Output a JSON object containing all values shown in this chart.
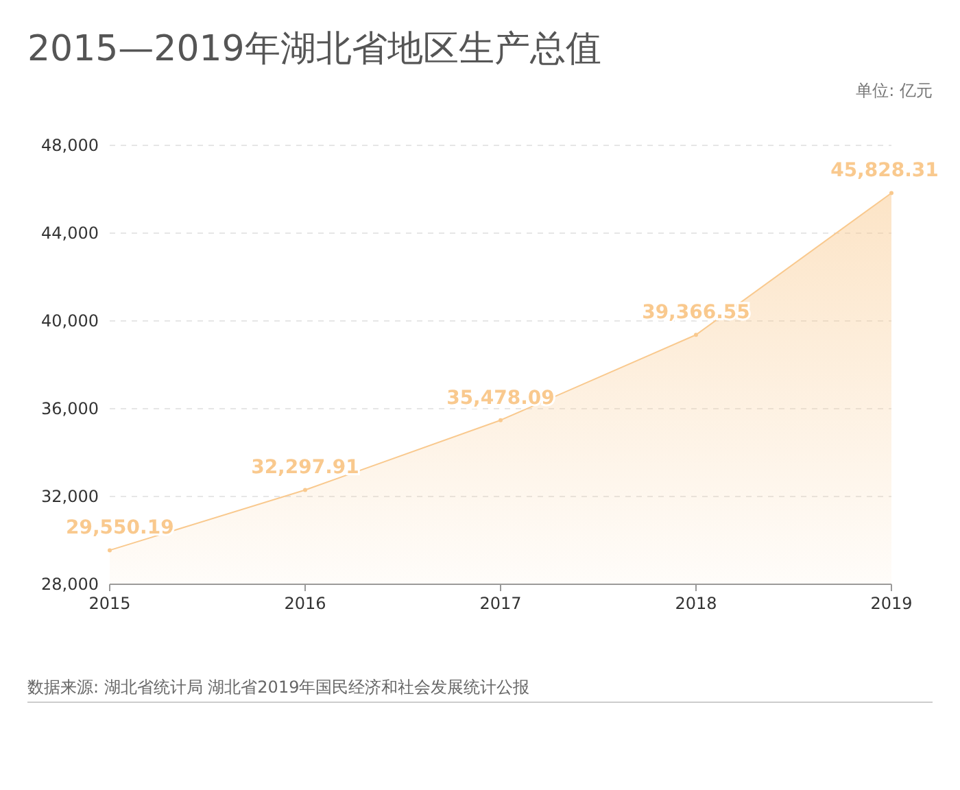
{
  "chart_data": {
    "type": "area",
    "title": "2015—2019年湖北省地区生产总值",
    "categories": [
      "2015",
      "2016",
      "2017",
      "2018",
      "2019"
    ],
    "values": [
      29550.19,
      32297.91,
      35478.09,
      39366.55,
      45828.31
    ],
    "color": "#f9c98e",
    "data_labels": true,
    "value_labels": [
      "29,550.19",
      "32,297.91",
      "35,478.09",
      "39,366.55",
      "45,828.31"
    ],
    "ylim": [
      28000,
      48000
    ],
    "yticks": [
      {
        "value": 28000,
        "label": "28,000"
      },
      {
        "value": 32000,
        "label": "32,000"
      },
      {
        "value": 36000,
        "label": "36,000"
      },
      {
        "value": 40000,
        "label": "40,000"
      },
      {
        "value": 44000,
        "label": "44,000"
      },
      {
        "value": 48000,
        "label": "48,000"
      }
    ],
    "grid": "y",
    "marker": "circle",
    "annotations": [
      "单位: 亿元",
      "数据来源: 湖北省统计局 湖北省2019年国民经济和社会发展统计公报"
    ]
  }
}
